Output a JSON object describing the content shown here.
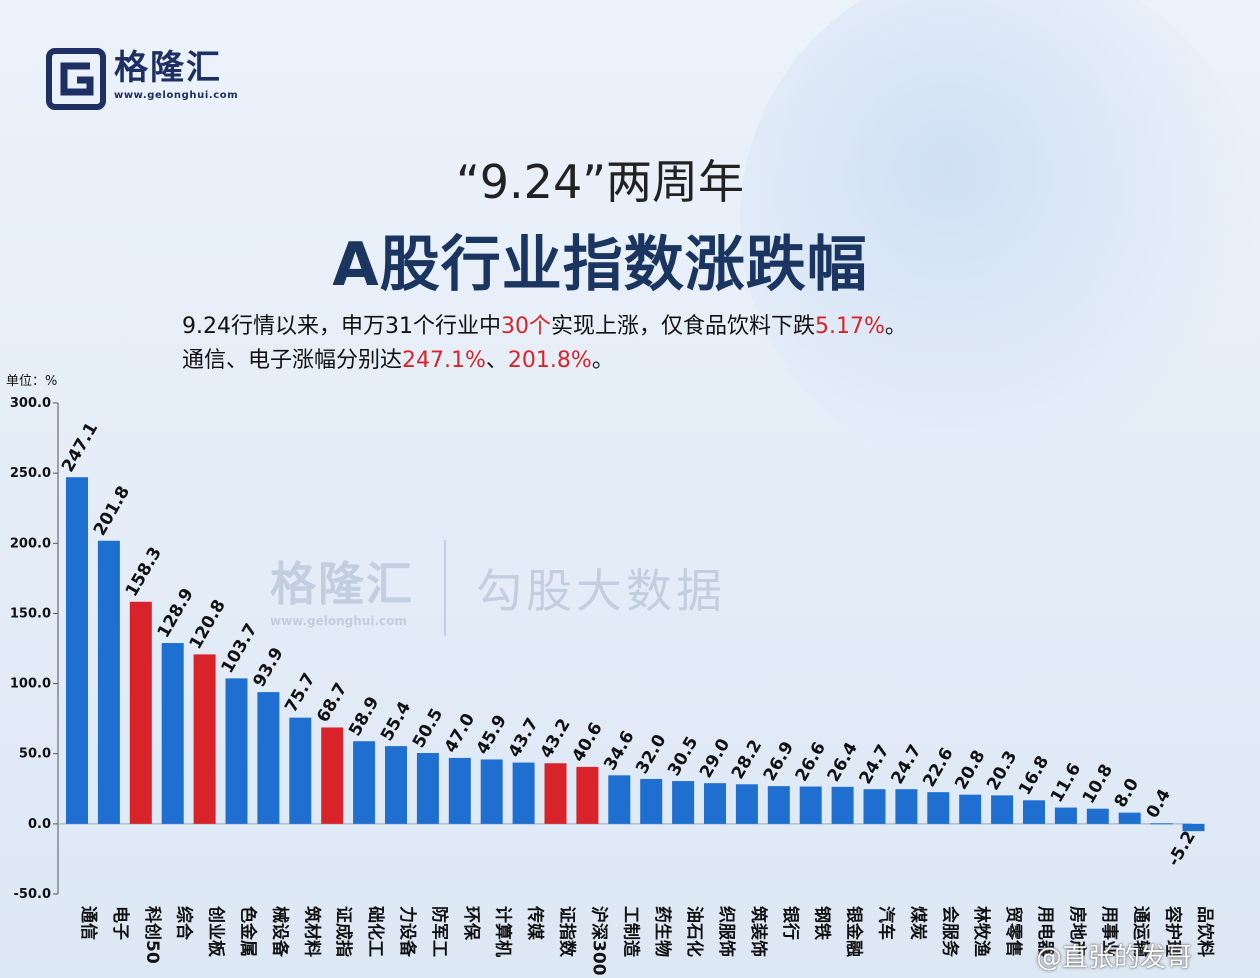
{
  "logo": {
    "name": "格隆汇",
    "url": "www.gelonghui.com"
  },
  "header": {
    "title_line1": "“9.24”两周年",
    "title_line2": "A股行业指数涨跌幅"
  },
  "description": {
    "line1": [
      {
        "text": "9.24行情以来，申万31个行业中",
        "red": false
      },
      {
        "text": "30个",
        "red": true
      },
      {
        "text": "实现上涨，仅食品饮料下跌",
        "red": false
      },
      {
        "text": "5.17%",
        "red": true
      },
      {
        "text": "。",
        "red": false
      }
    ],
    "line2": [
      {
        "text": "通信、电子涨幅分别达",
        "red": false
      },
      {
        "text": "247.1%",
        "red": true
      },
      {
        "text": "、",
        "red": false
      },
      {
        "text": "201.8%",
        "red": true
      },
      {
        "text": "。",
        "red": false
      }
    ]
  },
  "watermark": {
    "left_text": "格隆汇",
    "left_url": "www.gelonghui.com",
    "right_text": "勾股大数据"
  },
  "credit": "@直张的发哥",
  "colors": {
    "blue": "#1f6fd1",
    "red": "#d8232a",
    "title": "#193560"
  },
  "chart_data": {
    "type": "bar",
    "unit_label": "单位：%",
    "ylim": [
      -50,
      300
    ],
    "yticks": [
      "300.0",
      "250.0",
      "200.0",
      "150.0",
      "100.0",
      "50.0",
      "0.0",
      "-50.0"
    ],
    "ytick_values": [
      300,
      250,
      200,
      150,
      100,
      50,
      0,
      -50
    ],
    "grid": false,
    "categories": [
      "通信",
      "电子",
      "科创50",
      "综合",
      "创业板",
      "色金属",
      "械设备",
      "筑材料",
      "证成指",
      "础化工",
      "力设备",
      "防军工",
      "环保",
      "计算机",
      "传媒",
      "证指数",
      "沪深300",
      "工制造",
      "药生物",
      "油石化",
      "织服饰",
      "筑装饰",
      "银行",
      "钢铁",
      "银金融",
      "汽车",
      "煤炭",
      "会服务",
      "林牧渔",
      "贸零售",
      "用电器",
      "房地产",
      "用事业",
      "通运输",
      "容护理",
      "品饮料"
    ],
    "values": [
      247.1,
      201.8,
      158.3,
      128.9,
      120.8,
      103.7,
      93.9,
      75.7,
      68.7,
      58.9,
      55.4,
      50.5,
      47.0,
      45.9,
      43.7,
      43.2,
      40.6,
      34.6,
      32.0,
      30.5,
      29.0,
      28.2,
      26.9,
      26.6,
      26.4,
      24.7,
      24.7,
      22.6,
      20.8,
      20.3,
      16.8,
      11.6,
      10.8,
      8.0,
      0.4,
      -5.2
    ],
    "value_labels": [
      "247.1",
      "201.8",
      "158.3",
      "128.9",
      "120.8",
      "103.7",
      "93.9",
      "75.7",
      "68.7",
      "58.9",
      "55.4",
      "50.5",
      "47.0",
      "45.9",
      "43.7",
      "43.2",
      "40.6",
      "34.6",
      "32.0",
      "30.5",
      "29.0",
      "28.2",
      "26.9",
      "26.6",
      "26.4",
      "24.7",
      "24.7",
      "22.6",
      "20.8",
      "20.3",
      "16.8",
      "11.6",
      "10.8",
      "8.0",
      "0.4",
      "-5.2"
    ],
    "highlight": [
      false,
      false,
      true,
      false,
      true,
      false,
      false,
      false,
      true,
      false,
      false,
      false,
      false,
      false,
      false,
      true,
      true,
      false,
      false,
      false,
      false,
      false,
      false,
      false,
      false,
      false,
      false,
      false,
      false,
      false,
      false,
      false,
      false,
      false,
      false,
      false
    ]
  }
}
